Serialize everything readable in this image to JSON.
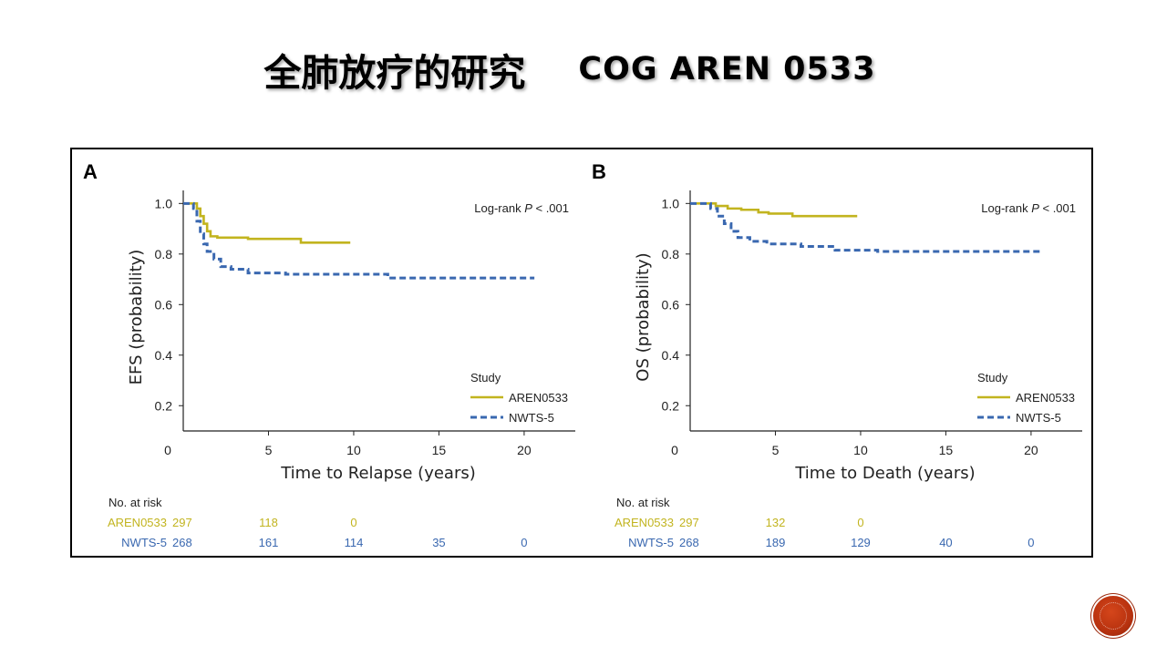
{
  "slide": {
    "title_cn": "全肺放疗的研究",
    "title_en": "COG AREN 0533"
  },
  "colors": {
    "aren": "#c2b41f",
    "nwts": "#3a68b0"
  },
  "chart_data": [
    {
      "type": "line",
      "panel": "A",
      "ylabel": "EFS (probability)",
      "xlabel": "Time to Relapse (years)",
      "xlim": [
        0,
        23
      ],
      "ylim": [
        0.1,
        1.03
      ],
      "xticks": [
        0,
        5,
        10,
        15,
        20
      ],
      "yticks": [
        0.2,
        0.4,
        0.6,
        0.8,
        1.0
      ],
      "yticklabels": [
        "0.2",
        "0.4",
        "0.6",
        "0.8",
        "1.0"
      ],
      "annotation": "Log-rank P < .001",
      "legend_title": "Study",
      "legend_position": "bottom-right",
      "series": [
        {
          "name": "AREN0533",
          "style": "solid",
          "color": "#c2b41f",
          "x": [
            0,
            0.5,
            0.8,
            1.0,
            1.2,
            1.4,
            1.6,
            2.0,
            3.8,
            6.9,
            9.8
          ],
          "y": [
            1.0,
            1.0,
            0.98,
            0.95,
            0.92,
            0.89,
            0.87,
            0.865,
            0.86,
            0.845,
            0.845
          ]
        },
        {
          "name": "NWTS-5",
          "style": "dashed",
          "color": "#3a68b0",
          "x": [
            0,
            0.4,
            0.6,
            0.8,
            1.0,
            1.2,
            1.4,
            1.8,
            2.2,
            2.8,
            3.8,
            6.0,
            8.0,
            10.0,
            12.0,
            14.0,
            20.6
          ],
          "y": [
            1.0,
            1.0,
            0.98,
            0.93,
            0.88,
            0.84,
            0.81,
            0.78,
            0.75,
            0.74,
            0.725,
            0.72,
            0.72,
            0.72,
            0.705,
            0.705,
            0.705
          ]
        }
      ],
      "at_risk": {
        "header": "No. at risk",
        "times": [
          0,
          5,
          10,
          15,
          20
        ],
        "rows": [
          {
            "label": "AREN0533",
            "values": [
              "297",
              "118",
              "0"
            ]
          },
          {
            "label": "NWTS-5",
            "values": [
              "268",
              "161",
              "114",
              "35",
              "0"
            ]
          }
        ]
      }
    },
    {
      "type": "line",
      "panel": "B",
      "ylabel": "OS (probability)",
      "xlabel": "Time to Death (years)",
      "xlim": [
        0,
        23
      ],
      "ylim": [
        0.1,
        1.03
      ],
      "xticks": [
        0,
        5,
        10,
        15,
        20
      ],
      "yticks": [
        0.2,
        0.4,
        0.6,
        0.8,
        1.0
      ],
      "yticklabels": [
        "0.2",
        "0.4",
        "0.6",
        "0.8",
        "1.0"
      ],
      "annotation": "Log-rank P < .001",
      "legend_title": "Study",
      "legend_position": "bottom-right",
      "series": [
        {
          "name": "AREN0533",
          "style": "solid",
          "color": "#c2b41f",
          "x": [
            0,
            0.8,
            1.5,
            2.2,
            3.0,
            4.0,
            4.6,
            6.0,
            9.8
          ],
          "y": [
            1.0,
            1.0,
            0.99,
            0.98,
            0.975,
            0.965,
            0.96,
            0.95,
            0.95
          ]
        },
        {
          "name": "NWTS-5",
          "style": "dashed",
          "color": "#3a68b0",
          "x": [
            0,
            0.8,
            1.2,
            1.6,
            2.0,
            2.4,
            2.8,
            3.5,
            4.5,
            6.5,
            8.5,
            11.0,
            16.0,
            20.6
          ],
          "y": [
            1.0,
            1.0,
            0.98,
            0.95,
            0.92,
            0.89,
            0.865,
            0.85,
            0.84,
            0.83,
            0.815,
            0.81,
            0.81,
            0.81
          ]
        }
      ],
      "at_risk": {
        "header": "No. at risk",
        "times": [
          0,
          5,
          10,
          15,
          20
        ],
        "rows": [
          {
            "label": "AREN0533",
            "values": [
              "297",
              "132",
              "0"
            ]
          },
          {
            "label": "NWTS-5",
            "values": [
              "268",
              "189",
              "129",
              "40",
              "0"
            ]
          }
        ]
      }
    }
  ]
}
